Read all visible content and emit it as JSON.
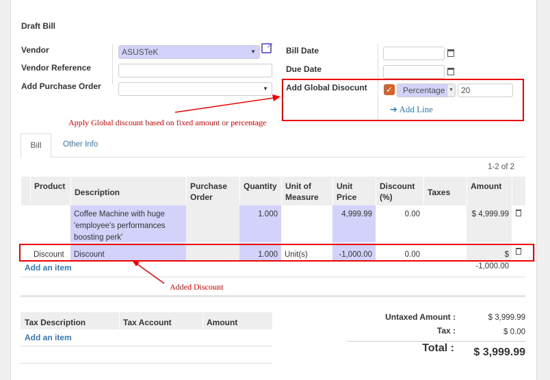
{
  "title": "Draft Bill",
  "form": {
    "vendor_label": "Vendor",
    "vendor_value": "ASUSTeK",
    "vendor_ref_label": "Vendor Reference",
    "vendor_ref_value": "",
    "po_label": "Add Purchase Order",
    "po_value": "",
    "bill_date_label": "Bill Date",
    "bill_date_value": "",
    "due_date_label": "Due Date",
    "due_date_value": "",
    "global_discount_label": "Add Global Disocunt",
    "global_discount_checked": true,
    "discount_type": "Percentage",
    "discount_value": "20",
    "add_line": "Add Line"
  },
  "annotations": {
    "global": "Apply Global discount based on fixed amount or percentage",
    "added": "Added Discount",
    "color": "#ee0000"
  },
  "tabs": [
    {
      "label": "Bill",
      "active": true
    },
    {
      "label": "Other Info",
      "active": false
    }
  ],
  "pager": "1-2 of 2",
  "lines": {
    "headers": [
      "Product",
      "Description",
      "Purchase Order",
      "Quantity",
      "Unit of Measure",
      "Unit Price",
      "Discount (%)",
      "Taxes",
      "Amount"
    ],
    "rows": [
      {
        "product": "",
        "description": "Coffee Machine with huge 'employee's performances boosting perk'",
        "po": "",
        "quantity": "1.000",
        "uom": "",
        "unit_price": "4,999.99",
        "discount": "0.00",
        "taxes": "",
        "amount": "$ 4,999.99"
      },
      {
        "product": "Discount",
        "description": "Discount",
        "po": "",
        "quantity": "1.000",
        "uom": "Unit(s)",
        "unit_price": "-1,000.00",
        "discount": "0.00",
        "taxes": "",
        "amount": "$ -1,000.00"
      }
    ],
    "add_item": "Add an item"
  },
  "taxes": {
    "headers": [
      "Tax Description",
      "Tax Account",
      "Amount"
    ],
    "add_item": "Add an item"
  },
  "totals": {
    "untaxed_label": "Untaxed Amount :",
    "untaxed": "$ 3,999.99",
    "tax_label": "Tax :",
    "tax": "$ 0.00",
    "total_label": "Total :",
    "total": "$ 3,999.99"
  }
}
